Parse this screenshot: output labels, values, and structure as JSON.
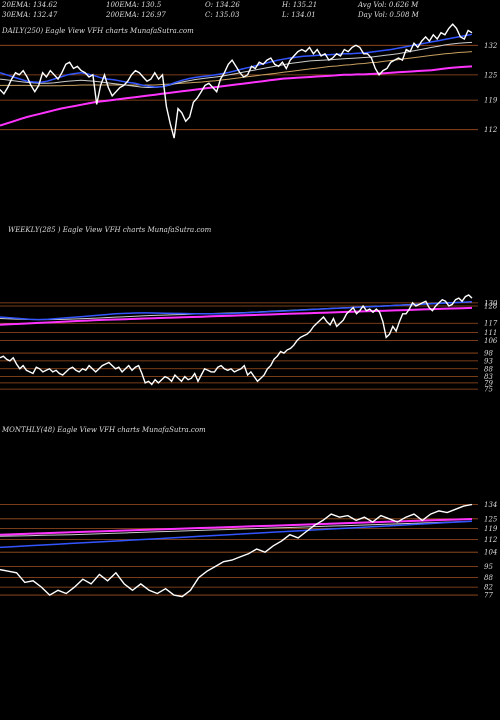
{
  "header": {
    "row1": [
      {
        "label": "20EMA: 134.62"
      },
      {
        "label": "100EMA: 130.5"
      },
      {
        "label": "O: 134.26"
      },
      {
        "label": "H: 135.21"
      },
      {
        "label": "Avg Vol: 0.626  M"
      }
    ],
    "row2": [
      {
        "label": "30EMA: 132.47"
      },
      {
        "label": "200EMA: 126.97"
      },
      {
        "label": "C: 135.03"
      },
      {
        "label": "L: 134.01"
      },
      {
        "label": "Day Vol: 0.508  M"
      }
    ]
  },
  "colors": {
    "background": "#000000",
    "price": "#ffffff",
    "ema_fast": "#3355ff",
    "ema_slow": "#ff33ff",
    "ema_mid": "#c8a060",
    "gridline": "#a05020"
  },
  "chart_data": [
    {
      "type": "line",
      "panel": "daily",
      "label": "DAILY(250) Eagle  View  VFH charts MunafaSutra.com",
      "y_ticks": [
        132,
        125,
        119,
        112
      ],
      "ylim": [
        106,
        138
      ],
      "price": [
        121.5,
        120.5,
        122,
        124,
        125.5,
        125,
        126,
        124.5,
        122.5,
        121,
        122.5,
        125.5,
        124.5,
        126,
        125,
        124,
        125.5,
        127.5,
        128,
        126.5,
        127,
        126,
        125.5,
        124.5,
        125,
        118,
        122.5,
        125,
        122,
        120,
        121,
        122,
        122.5,
        123.5,
        125,
        126,
        125.5,
        124.5,
        123.5,
        124,
        125.5,
        124,
        125,
        117.5,
        113.5,
        110,
        117,
        116,
        114,
        115,
        118.5,
        119.5,
        121,
        122.5,
        123,
        122,
        121,
        124,
        125.5,
        127.5,
        128.5,
        127,
        125.5,
        124.5,
        125,
        127,
        126.5,
        128,
        127.5,
        128.5,
        129,
        127.5,
        127,
        128,
        126.5,
        128.5,
        129.5,
        130.5,
        131,
        130.5,
        131.5,
        130,
        131,
        129.5,
        130,
        128.5,
        129,
        130,
        129.5,
        131,
        130.5,
        131.5,
        132,
        131.5,
        130,
        130,
        129,
        126.5,
        125,
        126,
        126.5,
        128,
        128.5,
        129,
        128.5,
        131,
        130.5,
        132.5,
        131.5,
        133,
        134,
        133,
        134.5,
        133.5,
        135,
        134.5,
        136,
        137,
        136,
        134,
        133.5,
        135.5,
        135
      ],
      "ema_fast": [
        125.5,
        125,
        124.5,
        124,
        123.5,
        123.3,
        123.2,
        123.5,
        124,
        124.5,
        125,
        125.3,
        125.5,
        125.2,
        124.8,
        124.3,
        124,
        123.8,
        123.5,
        123.2,
        123,
        122.6,
        122.3,
        122.1,
        122.2,
        122.6,
        123.2,
        123.7,
        124.1,
        124.4,
        124.6,
        124.8,
        125,
        125.3,
        125.6,
        126,
        126.4,
        126.8,
        127.2,
        127.6,
        128,
        128.4,
        128.7,
        129,
        129.2,
        129.4,
        129.5,
        129.6,
        129.7,
        129.8,
        129.9,
        130,
        130,
        130.1,
        130.2,
        130.4,
        130.6,
        130.8,
        131,
        131.3,
        131.6,
        131.9,
        132.2,
        132.5,
        132.8,
        133.1,
        133.4,
        133.7,
        134,
        134.3,
        134.6
      ],
      "ema_30": [
        124,
        123.8,
        123.6,
        123.4,
        123.2,
        123.1,
        123,
        123,
        123.1,
        123.3,
        123.5,
        123.6,
        123.7,
        123.6,
        123.5,
        123.3,
        123.1,
        122.9,
        122.7,
        122.5,
        122.3,
        122.1,
        122,
        122,
        122.2,
        122.5,
        122.9,
        123.3,
        123.6,
        123.9,
        124.1,
        124.3,
        124.5,
        124.7,
        125,
        125.3,
        125.6,
        125.9,
        126.2,
        126.5,
        126.8,
        127.1,
        127.4,
        127.7,
        127.9,
        128.1,
        128.3,
        128.4,
        128.5,
        128.6,
        128.7,
        128.8,
        128.9,
        129,
        129.1,
        129.2,
        129.4,
        129.6,
        129.8,
        130,
        130.3,
        130.6,
        130.9,
        131.2,
        131.5,
        131.8,
        132.1,
        132.3,
        132.5,
        132.6,
        132.7
      ],
      "ema_100": [
        122.5,
        122.5,
        122.5,
        122.5,
        122.5,
        122.4,
        122.4,
        122.4,
        122.4,
        122.4,
        122.5,
        122.5,
        122.6,
        122.6,
        122.6,
        122.6,
        122.6,
        122.6,
        122.6,
        122.6,
        122.6,
        122.6,
        122.6,
        122.6,
        122.7,
        122.8,
        122.9,
        123,
        123.1,
        123.2,
        123.3,
        123.5,
        123.6,
        123.8,
        124,
        124.2,
        124.4,
        124.6,
        124.8,
        125,
        125.2,
        125.4,
        125.6,
        125.8,
        126,
        126.2,
        126.4,
        126.6,
        126.8,
        127,
        127.1,
        127.3,
        127.4,
        127.6,
        127.7,
        127.9,
        128,
        128.2,
        128.4,
        128.6,
        128.8,
        129,
        129.2,
        129.4,
        129.6,
        129.8,
        130,
        130.1,
        130.3,
        130.4,
        130.5
      ],
      "ema_200": [
        113,
        113.5,
        114,
        114.5,
        115,
        115.4,
        115.8,
        116.2,
        116.6,
        117,
        117.3,
        117.6,
        117.9,
        118.2,
        118.5,
        118.7,
        118.9,
        119.1,
        119.3,
        119.5,
        119.7,
        119.9,
        120.1,
        120.3,
        120.5,
        120.7,
        120.9,
        121.1,
        121.3,
        121.5,
        121.7,
        121.9,
        122.1,
        122.3,
        122.5,
        122.7,
        122.9,
        123.1,
        123.3,
        123.5,
        123.7,
        123.9,
        124.1,
        124.2,
        124.3,
        124.4,
        124.5,
        124.6,
        124.7,
        124.8,
        124.9,
        125,
        125,
        125.1,
        125.1,
        125.2,
        125.3,
        125.4,
        125.5,
        125.6,
        125.7,
        125.8,
        125.9,
        126,
        126.1,
        126.3,
        126.5,
        126.7,
        126.8,
        126.9,
        127
      ]
    },
    {
      "type": "line",
      "panel": "weekly",
      "label": "WEEKLY(285                    ) Eagle  View  VFH charts MunafaSutra.com",
      "y_ticks": [
        130,
        128,
        117,
        111,
        106,
        98,
        93,
        88,
        83,
        79,
        75
      ],
      "ylim": [
        70,
        135
      ],
      "price": [
        95,
        96,
        94,
        93,
        95,
        91,
        88,
        90,
        87,
        86,
        85,
        89,
        88,
        86,
        87,
        88,
        86,
        87,
        85,
        84,
        86,
        88,
        89,
        87,
        86,
        88,
        87,
        90,
        88,
        86,
        88,
        90,
        91,
        92,
        90,
        88,
        89,
        86,
        88,
        90,
        87,
        89,
        90,
        85,
        79,
        80,
        78,
        81,
        79,
        81,
        83,
        82,
        80,
        84,
        82,
        80,
        83,
        81,
        82,
        85,
        80,
        84,
        88,
        87,
        86,
        86,
        89,
        90,
        88,
        87,
        88,
        86,
        87,
        88,
        90,
        84,
        86,
        83,
        80,
        82,
        84,
        88,
        90,
        94,
        96,
        99,
        98,
        100,
        101,
        103,
        106,
        108,
        109,
        110,
        112,
        115,
        117,
        119,
        121,
        118,
        116,
        120,
        115,
        117,
        119,
        123,
        125,
        127,
        123,
        125,
        128,
        125,
        126,
        124,
        126,
        124,
        118,
        108,
        110,
        115,
        112,
        118,
        123,
        123,
        126,
        130,
        128,
        129,
        130,
        131,
        127,
        125,
        128,
        130,
        132,
        131,
        128,
        129,
        132,
        133,
        131,
        134,
        135,
        133
      ],
      "ema_fast": [
        121,
        120.5,
        120,
        119.5,
        119.3,
        119.5,
        120,
        120.5,
        121,
        121.5,
        122,
        122.5,
        123,
        123.3,
        123.5,
        123.6,
        123.5,
        123.4,
        123.3,
        123.2,
        123.1,
        123,
        123,
        123,
        123.2,
        123.5,
        123.8,
        124.1,
        124.4,
        124.7,
        125,
        125.3,
        125.6,
        125.9,
        126.2,
        126.5,
        126.8,
        127.1,
        127.4,
        127.7,
        128,
        128.3,
        128.6,
        128.9,
        129.2,
        129.5,
        129.8,
        130.1,
        130.4,
        130.7
      ],
      "ema_mid": [
        120,
        119.8,
        119.6,
        119.4,
        119.3,
        119.3,
        119.4,
        119.6,
        119.8,
        120,
        120.3,
        120.6,
        120.9,
        121.2,
        121.5,
        121.8,
        122,
        122.2,
        122.4,
        122.6,
        122.8,
        123,
        123.2,
        123.4,
        123.6,
        123.8,
        124,
        124.3,
        124.6,
        124.9,
        125.2,
        125.5,
        125.8,
        126.1,
        126.4,
        126.7,
        127,
        127.3,
        127.6,
        127.9,
        128.2,
        128.5,
        128.8,
        129.1,
        129.4,
        129.7,
        130,
        130.2,
        130.4,
        130.6
      ],
      "ema_slow": [
        116,
        116.3,
        116.6,
        116.9,
        117.2,
        117.5,
        117.8,
        118.1,
        118.4,
        118.7,
        119,
        119.2,
        119.4,
        119.6,
        119.8,
        120,
        120.2,
        120.4,
        120.6,
        120.8,
        121,
        121.2,
        121.4,
        121.6,
        121.8,
        122,
        122.2,
        122.4,
        122.6,
        122.8,
        123,
        123.2,
        123.4,
        123.6,
        123.8,
        124,
        124.2,
        124.4,
        124.6,
        124.8,
        125,
        125.2,
        125.4,
        125.6,
        125.8,
        126,
        126.2,
        126.4,
        126.6,
        126.8
      ]
    },
    {
      "type": "line",
      "panel": "monthly",
      "label": "MONTHLY(48) Eagle  View  VFH charts MunafaSutra.com",
      "y_ticks": [
        134,
        125,
        119,
        112,
        104,
        95,
        88,
        82,
        77
      ],
      "ylim": [
        72,
        140
      ],
      "price": [
        93,
        92,
        91,
        85,
        86,
        82,
        77,
        80,
        78,
        82,
        87,
        84,
        90,
        86,
        91,
        84,
        80,
        84,
        80,
        78,
        81,
        77,
        76,
        80,
        88,
        92,
        95,
        98,
        99,
        101,
        103,
        106,
        104,
        108,
        111,
        115,
        113,
        117,
        121,
        124,
        128,
        126,
        127,
        124,
        126,
        123,
        127,
        125,
        123,
        126,
        128,
        124,
        128,
        130,
        129,
        131,
        133,
        134
      ],
      "ema_fast": [
        107,
        107.5,
        108,
        108.5,
        109,
        109.5,
        110,
        110.5,
        111,
        111.5,
        112,
        112.5,
        113,
        113.5,
        114,
        114.5,
        115,
        115.5,
        116,
        116.5,
        117,
        117.5,
        118,
        118.5,
        119,
        119.5,
        120,
        120.5,
        121,
        121.5,
        122,
        122.5,
        123,
        123.5
      ],
      "ema_mid": [
        114,
        114.2,
        114.4,
        114.6,
        114.8,
        115,
        115.3,
        115.6,
        115.9,
        116.2,
        116.5,
        116.8,
        117.1,
        117.4,
        117.7,
        118,
        118.3,
        118.6,
        118.9,
        119.2,
        119.5,
        119.8,
        120.1,
        120.4,
        120.7,
        121,
        121.3,
        121.6,
        121.9,
        122.2,
        122.5,
        122.8,
        123.1,
        123.4
      ],
      "ema_slow": [
        115,
        115.3,
        115.6,
        115.9,
        116.2,
        116.5,
        116.8,
        117.1,
        117.4,
        117.7,
        118,
        118.3,
        118.6,
        118.9,
        119.2,
        119.5,
        119.8,
        120.1,
        120.4,
        120.7,
        121,
        121.3,
        121.6,
        121.9,
        122.2,
        122.5,
        122.8,
        123.1,
        123.4,
        123.7,
        124,
        124.3,
        124.6,
        124.9
      ]
    }
  ]
}
